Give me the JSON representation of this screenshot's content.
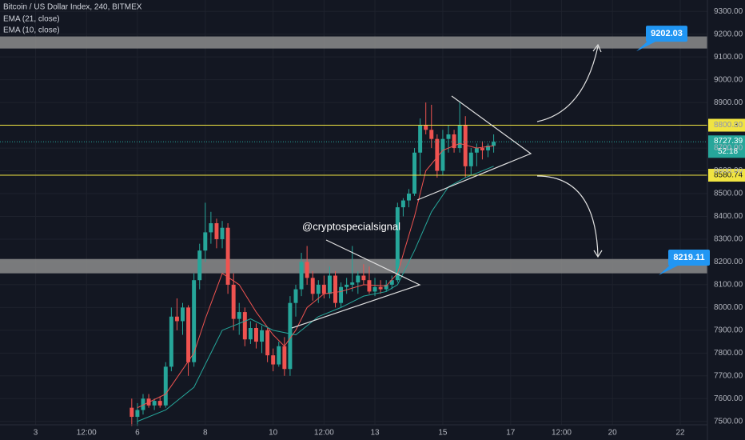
{
  "chart_data": {
    "type": "candlestick",
    "title": "Bitcoin / US Dollar Index, 240, BITMEX",
    "indicators": [
      "EMA (21, close)",
      "EMA (10, close)"
    ],
    "watermark": "@cryptospecialsignal",
    "countdown": "52:18",
    "ylim": [
      7485,
      9350
    ],
    "yticks": [
      {
        "value": 7500,
        "label": "7500.00"
      },
      {
        "value": 7600,
        "label": "7600.00"
      },
      {
        "value": 7700,
        "label": "7700.00"
      },
      {
        "value": 7800,
        "label": "7800.00"
      },
      {
        "value": 7900,
        "label": "7900.00"
      },
      {
        "value": 8000,
        "label": "8000.00"
      },
      {
        "value": 8100,
        "label": "8100.00"
      },
      {
        "value": 8200,
        "label": "8200.00"
      },
      {
        "value": 8300,
        "label": "8300.00"
      },
      {
        "value": 8400,
        "label": "8400.00"
      },
      {
        "value": 8500,
        "label": "8500.00"
      },
      {
        "value": 8600,
        "label": "8600.00"
      },
      {
        "value": 8700,
        "label": "8700.00"
      },
      {
        "value": 8800,
        "label": "8800.00"
      },
      {
        "value": 8900,
        "label": "8900.00"
      },
      {
        "value": 9000,
        "label": "9000.00"
      },
      {
        "value": 9100,
        "label": "9100.00"
      },
      {
        "value": 9200,
        "label": "9200.00"
      },
      {
        "value": 9300,
        "label": "9300.00"
      }
    ],
    "xlim": [
      -24.3,
      100.8
    ],
    "xticks": [
      {
        "value": -18,
        "label": "3"
      },
      {
        "value": -9,
        "label": "12:00"
      },
      {
        "value": 0,
        "label": "6"
      },
      {
        "value": 12,
        "label": "8"
      },
      {
        "value": 24,
        "label": "10"
      },
      {
        "value": 33,
        "label": "12:00"
      },
      {
        "value": 42,
        "label": "13"
      },
      {
        "value": 54,
        "label": "15"
      },
      {
        "value": 66,
        "label": "17"
      },
      {
        "value": 75,
        "label": "12:00"
      },
      {
        "value": 84,
        "label": "20"
      },
      {
        "value": 96,
        "label": "22"
      }
    ],
    "grid": true,
    "up_color": "#26a69a",
    "down_color": "#ef5350",
    "x": [
      -1,
      0,
      1,
      2,
      3,
      4,
      5,
      6,
      7,
      8,
      9,
      10,
      11,
      12,
      13,
      14,
      15,
      16,
      17,
      18,
      19,
      20,
      21,
      22,
      23,
      24,
      25,
      26,
      27,
      28,
      29,
      30,
      31,
      32,
      33,
      34,
      35,
      36,
      37,
      38,
      39,
      40,
      41,
      42,
      43,
      44,
      45,
      46,
      47,
      48,
      49,
      50,
      51,
      52,
      53,
      54,
      55,
      56,
      57,
      58,
      59,
      60,
      61,
      62,
      63
    ],
    "open": [
      7560,
      7520,
      7550,
      7600,
      7570,
      7590,
      7570,
      7740,
      7960,
      7940,
      8000,
      7760,
      8120,
      8250,
      8330,
      8370,
      8300,
      8350,
      8100,
      7950,
      7980,
      7860,
      7910,
      7850,
      7900,
      7790,
      7750,
      7830,
      7730,
      8020,
      8080,
      8200,
      8130,
      8060,
      8100,
      8060,
      8140,
      8020,
      8090,
      8100,
      8110,
      8140,
      8120,
      8070,
      8090,
      8080,
      8100,
      8120,
      8440,
      8470,
      8500,
      8680,
      8800,
      8780,
      8740,
      8600,
      8740,
      8760,
      8700,
      8800,
      8620,
      8680,
      8700,
      8690,
      8710
    ],
    "high": [
      7600,
      7580,
      7620,
      7620,
      7600,
      7610,
      7760,
      8000,
      8040,
      8020,
      8010,
      8150,
      8280,
      8460,
      8420,
      8390,
      8380,
      8370,
      8150,
      8020,
      8000,
      7940,
      7930,
      7920,
      7910,
      7820,
      7850,
      7870,
      8050,
      8100,
      8240,
      8270,
      8160,
      8120,
      8140,
      8180,
      8160,
      8110,
      8130,
      8270,
      8160,
      8190,
      8180,
      8130,
      8120,
      8120,
      8140,
      8460,
      8480,
      8520,
      8700,
      8830,
      8900,
      8890,
      8760,
      8780,
      8800,
      8780,
      8900,
      8840,
      8700,
      8720,
      8730,
      8720,
      8760
    ],
    "low": [
      7480,
      7480,
      7530,
      7560,
      7550,
      7560,
      7560,
      7720,
      7900,
      7880,
      7700,
      7740,
      8080,
      8200,
      8280,
      8260,
      8260,
      8060,
      7900,
      7880,
      7830,
      7840,
      7820,
      7800,
      7760,
      7720,
      7740,
      7700,
      7700,
      7960,
      8050,
      8100,
      8030,
      8020,
      8040,
      8040,
      8000,
      8000,
      8060,
      8070,
      8060,
      8100,
      8060,
      8050,
      8060,
      8070,
      8080,
      8110,
      8400,
      8440,
      8490,
      8580,
      8760,
      8700,
      8570,
      8580,
      8680,
      8680,
      8680,
      8570,
      8580,
      8620,
      8650,
      8660,
      8680
    ],
    "close": [
      7520,
      7550,
      7600,
      7570,
      7590,
      7570,
      7740,
      7960,
      7940,
      8000,
      7760,
      8120,
      8250,
      8330,
      8370,
      8300,
      8350,
      8100,
      7950,
      7980,
      7860,
      7910,
      7850,
      7900,
      7790,
      7750,
      7830,
      7730,
      8020,
      8080,
      8200,
      8130,
      8060,
      8100,
      8060,
      8140,
      8020,
      8090,
      8100,
      8110,
      8140,
      8120,
      8070,
      8090,
      8080,
      8100,
      8120,
      8440,
      8470,
      8500,
      8680,
      8800,
      8780,
      8740,
      8600,
      8740,
      8760,
      8700,
      8800,
      8620,
      8680,
      8700,
      8690,
      8710,
      8727.39
    ],
    "series": [
      {
        "name": "EMA (10, close)",
        "color": "#ef5350",
        "x": [
          0,
          5,
          10,
          12,
          15,
          18,
          21,
          24,
          26,
          28,
          30,
          33,
          36,
          40,
          44,
          46,
          49,
          51,
          54,
          57,
          60,
          63
        ],
        "values": [
          7560,
          7620,
          7800,
          7950,
          8150,
          8100,
          7980,
          7880,
          7830,
          7900,
          8000,
          8060,
          8070,
          8100,
          8095,
          8150,
          8400,
          8600,
          8690,
          8720,
          8700,
          8710
        ]
      },
      {
        "name": "EMA (21, close)",
        "color": "#26a69a",
        "x": [
          0,
          5,
          10,
          15,
          20,
          24,
          28,
          32,
          36,
          40,
          44,
          46,
          49,
          52,
          55,
          58,
          61,
          63
        ],
        "values": [
          7500,
          7550,
          7650,
          7900,
          7950,
          7900,
          7880,
          7960,
          8000,
          8050,
          8070,
          8100,
          8250,
          8420,
          8530,
          8570,
          8600,
          8620
        ]
      }
    ],
    "zones": [
      [
        9137,
        9190
      ],
      [
        8150,
        8213
      ]
    ],
    "hlines": [
      {
        "value": 8800.3,
        "label": "8800.30",
        "color": "#f0e442"
      },
      {
        "value": 8580.74,
        "label": "8580.74",
        "color": "#f0e442"
      }
    ],
    "last_price": {
      "value": 8727.39,
      "label": "8727.39",
      "color": "#26a69a"
    },
    "callouts": [
      {
        "value": 9202.03,
        "label": "9202.03"
      },
      {
        "value": 8219.11,
        "label": "8219.11"
      }
    ]
  }
}
